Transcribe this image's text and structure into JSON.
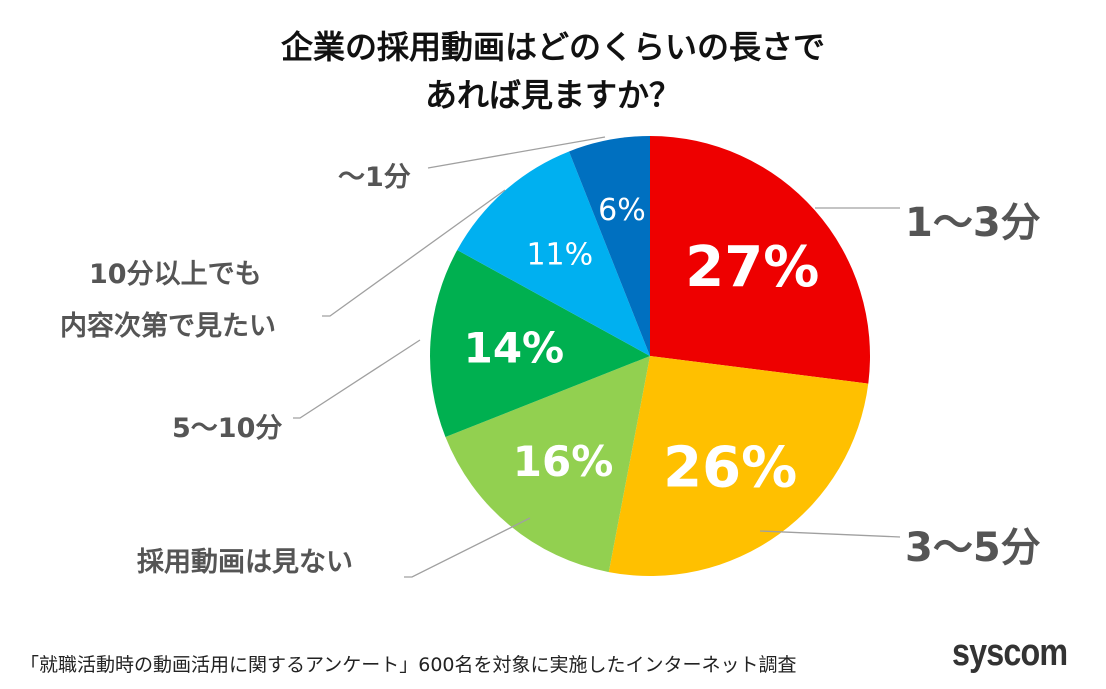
{
  "chart_data": {
    "type": "pie",
    "title": "企業の採用動画はどのくらいの長さで\nあれば見ますか？",
    "title_lines": [
      "企業の採用動画はどのくらいの長さで",
      "あれば見ますか？"
    ],
    "start": "top, clockwise",
    "slices": [
      {
        "label": "1〜3分",
        "value": 27,
        "display": "27%",
        "color": "#EE0000"
      },
      {
        "label": "3〜5分",
        "value": 26,
        "display": "26%",
        "color": "#FFC000"
      },
      {
        "label": "採用動画は見ない",
        "value": 16,
        "display": "16%",
        "color": "#92D050"
      },
      {
        "label": "5〜10分",
        "value": 14,
        "display": "14%",
        "color": "#00B050"
      },
      {
        "label": "10分以上でも\n内容次第で見たい",
        "label_lines": [
          "10分以上でも",
          "内容次第で見たい"
        ],
        "value": 11,
        "display": "11%",
        "color": "#00B0F0"
      },
      {
        "label": "〜1分",
        "value": 6,
        "display": "6%",
        "color": "#0070C0"
      }
    ]
  },
  "footer": "「就職活動時の動画活用に関するアンケート」600名を対象に実施したインターネット調査",
  "logo": "syscom"
}
